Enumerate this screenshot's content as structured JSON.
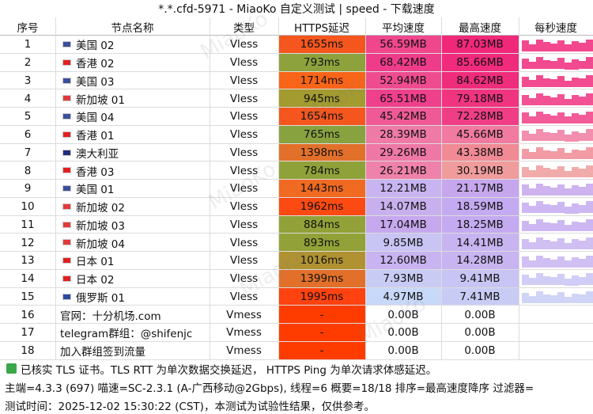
{
  "title": "*.*.cfd-5971 - MiaoKo 自定义测试 | speed - 下载速度",
  "watermark": "MiaoKo",
  "table": {
    "headers": [
      "序号",
      "节点名称",
      "类型",
      "HTTPS延迟",
      "平均速度",
      "最高速度",
      "每秒速度"
    ],
    "rows": [
      {
        "cells": [
          "1",
          "美国 02",
          "Vless",
          "1655ms",
          "56.59MB",
          "87.03MB"
        ],
        "flag": "#3c4f9a",
        "colors": [
          "#f4561e",
          "#ef468c",
          "#f0287a"
        ]
      },
      {
        "cells": [
          "2",
          "香港 02",
          "Vless",
          "793ms",
          "68.42MB",
          "85.66MB"
        ],
        "flag": "#e02020",
        "colors": [
          "#8da23c",
          "#ef3c8a",
          "#f02a7c"
        ]
      },
      {
        "cells": [
          "3",
          "美国 03",
          "Vless",
          "1714ms",
          "52.94MB",
          "84.62MB"
        ],
        "flag": "#3c4f9a",
        "colors": [
          "#f86418",
          "#ef4c90",
          "#f02c7c"
        ]
      },
      {
        "cells": [
          "4",
          "新加坡 01",
          "Vless",
          "945ms",
          "65.51MB",
          "79.18MB"
        ],
        "flag": "#e23a3a",
        "colors": [
          "#a39a30",
          "#ef408c",
          "#f03480"
        ]
      },
      {
        "cells": [
          "5",
          "美国 04",
          "Vless",
          "1654ms",
          "45.42MB",
          "72.28MB"
        ],
        "flag": "#3c4f9a",
        "colors": [
          "#f4561e",
          "#ef5a96",
          "#f03e86"
        ]
      },
      {
        "cells": [
          "6",
          "香港 01",
          "Vless",
          "765ms",
          "28.39MB",
          "45.66MB"
        ],
        "flag": "#e02020",
        "colors": [
          "#88a240",
          "#ef7aa6",
          "#f07aa0"
        ]
      },
      {
        "cells": [
          "7",
          "澳大利亚",
          "Vless",
          "1398ms",
          "29.26MB",
          "43.38MB"
        ],
        "flag": "#22307a",
        "colors": [
          "#e2702a",
          "#ef78a6",
          "#f08a94"
        ]
      },
      {
        "cells": [
          "8",
          "香港 03",
          "Vless",
          "784ms",
          "26.21MB",
          "30.19MB"
        ],
        "flag": "#e02020",
        "colors": [
          "#8fa23a",
          "#ef82aa",
          "#f09c9c"
        ]
      },
      {
        "cells": [
          "9",
          "美国 01",
          "Vless",
          "1443ms",
          "12.21MB",
          "21.17MB"
        ],
        "flag": "#3c4f9a",
        "colors": [
          "#f06a22",
          "#c8b4f0",
          "#c6a6ec"
        ]
      },
      {
        "cells": [
          "10",
          "新加坡 02",
          "Vless",
          "1962ms",
          "14.07MB",
          "18.59MB"
        ],
        "flag": "#e23a3a",
        "colors": [
          "#fc4a12",
          "#c8b0ee",
          "#c4aaf0"
        ]
      },
      {
        "cells": [
          "11",
          "新加坡 03",
          "Vless",
          "884ms",
          "17.04MB",
          "18.25MB"
        ],
        "flag": "#e23a3a",
        "colors": [
          "#92a238",
          "#c6a8ee",
          "#c4aaf0"
        ]
      },
      {
        "cells": [
          "12",
          "新加坡 04",
          "Vless",
          "893ms",
          "9.85MB",
          "14.41MB"
        ],
        "flag": "#e23a3a",
        "colors": [
          "#92a238",
          "#c8c4f4",
          "#c8b4f0"
        ]
      },
      {
        "cells": [
          "13",
          "日本 01",
          "Vless",
          "1016ms",
          "12.60MB",
          "14.28MB"
        ],
        "flag": "#e02020",
        "colors": [
          "#b09232",
          "#c8b4f0",
          "#c8b4f0"
        ]
      },
      {
        "cells": [
          "14",
          "日本 02",
          "Vless",
          "1399ms",
          "7.93MB",
          "9.41MB"
        ],
        "flag": "#e02020",
        "colors": [
          "#e2702a",
          "#c8ccf4",
          "#c8c4f4"
        ]
      },
      {
        "cells": [
          "15",
          "俄罗斯 01",
          "Vless",
          "1995ms",
          "4.97MB",
          "7.41MB"
        ],
        "flag": "#2a4aa0",
        "colors": [
          "#fe4210",
          "#c8d8f8",
          "#c8ccf4"
        ]
      },
      {
        "cells": [
          "16",
          "官网：十分机场.com",
          "Vmess",
          "-",
          "0.00B",
          "0.00B"
        ],
        "colors": [
          "#ff3c00",
          "#ffffff",
          "#ffffff"
        ]
      },
      {
        "cells": [
          "17",
          "telegram群组：@shifenjc",
          "Vmess",
          "-",
          "0.00B",
          "0.00B"
        ],
        "colors": [
          "#ff3c00",
          "#ffffff",
          "#ffffff"
        ]
      },
      {
        "cells": [
          "18",
          "加入群组签到流量",
          "Vmess",
          "-",
          "0.00B",
          "0.00B"
        ],
        "colors": [
          "#ff3c00",
          "#ffffff",
          "#ffffff"
        ]
      }
    ]
  },
  "footer": [
    "已核实 TLS 证书。TLS RTT 为单次数据交换延迟， HTTPS Ping 为单次请求体感延迟。",
    "主端=4.3.3 (697) 喵速=SC-2.3.1 (A-广西移动@2Gbps), 线程=6 概要=18/18 排序=最高速度降序 过滤器=",
    "测试时间：2025-12-02 15:30:22 (CST)，本测试为试验性结果，仅供参考。"
  ]
}
